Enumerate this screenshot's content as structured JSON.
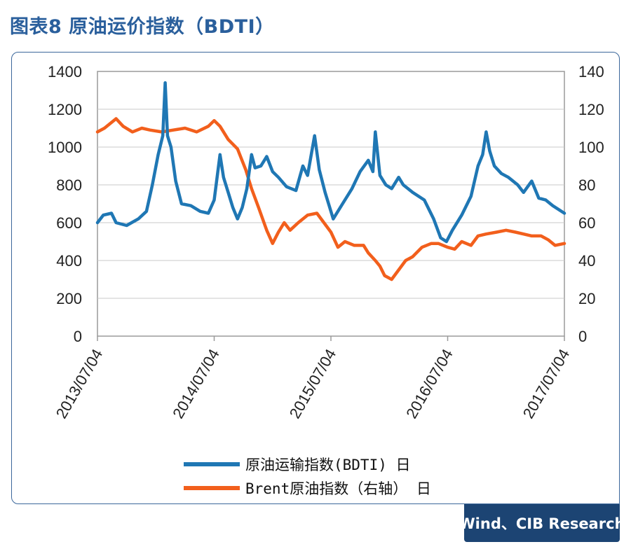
{
  "figure_title": "图表8 原油运价指数（BDTI）",
  "source": "Wind、CIB Research",
  "chart_data": {
    "type": "line",
    "y_left": {
      "min": 0,
      "max": 1400,
      "ticks": [
        "0",
        "200",
        "400",
        "600",
        "800",
        "1000",
        "1200",
        "1400"
      ]
    },
    "y_right": {
      "min": 0,
      "max": 140,
      "ticks": [
        "0",
        "20",
        "40",
        "60",
        "80",
        "100",
        "120",
        "140"
      ]
    },
    "x_ticks": [
      "2013/07/04",
      "2014/07/04",
      "2015/07/04",
      "2016/07/04",
      "2017/07/04"
    ],
    "x_range": [
      2013.5,
      2017.5
    ],
    "legend_placement": "bottom",
    "series": [
      {
        "name": "原油运输指数(BDTI) 日",
        "axis": "left",
        "color": "#1f77b4",
        "points": [
          [
            2013.5,
            600
          ],
          [
            2013.55,
            640
          ],
          [
            2013.62,
            650
          ],
          [
            2013.66,
            600
          ],
          [
            2013.75,
            585
          ],
          [
            2013.85,
            620
          ],
          [
            2013.92,
            660
          ],
          [
            2013.97,
            800
          ],
          [
            2014.02,
            960
          ],
          [
            2014.06,
            1060
          ],
          [
            2014.08,
            1340
          ],
          [
            2014.1,
            1060
          ],
          [
            2014.13,
            1000
          ],
          [
            2014.17,
            820
          ],
          [
            2014.22,
            700
          ],
          [
            2014.3,
            690
          ],
          [
            2014.38,
            660
          ],
          [
            2014.45,
            650
          ],
          [
            2014.5,
            720
          ],
          [
            2014.55,
            960
          ],
          [
            2014.58,
            840
          ],
          [
            2014.62,
            760
          ],
          [
            2014.66,
            680
          ],
          [
            2014.7,
            620
          ],
          [
            2014.74,
            680
          ],
          [
            2014.78,
            780
          ],
          [
            2014.82,
            960
          ],
          [
            2014.85,
            890
          ],
          [
            2014.9,
            900
          ],
          [
            2014.95,
            950
          ],
          [
            2015.0,
            870
          ],
          [
            2015.05,
            840
          ],
          [
            2015.12,
            790
          ],
          [
            2015.2,
            770
          ],
          [
            2015.26,
            900
          ],
          [
            2015.3,
            850
          ],
          [
            2015.36,
            1060
          ],
          [
            2015.4,
            880
          ],
          [
            2015.45,
            760
          ],
          [
            2015.52,
            620
          ],
          [
            2015.6,
            700
          ],
          [
            2015.68,
            780
          ],
          [
            2015.75,
            870
          ],
          [
            2015.82,
            930
          ],
          [
            2015.86,
            870
          ],
          [
            2015.88,
            1080
          ],
          [
            2015.92,
            850
          ],
          [
            2015.97,
            800
          ],
          [
            2016.02,
            780
          ],
          [
            2016.08,
            840
          ],
          [
            2016.12,
            800
          ],
          [
            2016.2,
            760
          ],
          [
            2016.3,
            720
          ],
          [
            2016.38,
            620
          ],
          [
            2016.44,
            520
          ],
          [
            2016.49,
            500
          ],
          [
            2016.54,
            560
          ],
          [
            2016.62,
            640
          ],
          [
            2016.7,
            740
          ],
          [
            2016.76,
            900
          ],
          [
            2016.8,
            960
          ],
          [
            2016.83,
            1080
          ],
          [
            2016.86,
            980
          ],
          [
            2016.9,
            900
          ],
          [
            2016.96,
            860
          ],
          [
            2017.02,
            840
          ],
          [
            2017.1,
            800
          ],
          [
            2017.15,
            760
          ],
          [
            2017.22,
            820
          ],
          [
            2017.28,
            730
          ],
          [
            2017.34,
            720
          ],
          [
            2017.4,
            690
          ],
          [
            2017.5,
            650
          ]
        ]
      },
      {
        "name": "Brent原油指数（右轴） 日",
        "axis": "right",
        "color": "#f25f1c",
        "points": [
          [
            2013.5,
            108
          ],
          [
            2013.56,
            110
          ],
          [
            2013.62,
            113
          ],
          [
            2013.66,
            115
          ],
          [
            2013.72,
            111
          ],
          [
            2013.8,
            108
          ],
          [
            2013.88,
            110
          ],
          [
            2013.95,
            109
          ],
          [
            2014.05,
            108
          ],
          [
            2014.15,
            109
          ],
          [
            2014.25,
            110
          ],
          [
            2014.35,
            108
          ],
          [
            2014.45,
            111
          ],
          [
            2014.5,
            114
          ],
          [
            2014.55,
            111
          ],
          [
            2014.62,
            104
          ],
          [
            2014.7,
            99
          ],
          [
            2014.77,
            88
          ],
          [
            2014.82,
            78
          ],
          [
            2014.88,
            68
          ],
          [
            2014.95,
            56
          ],
          [
            2015.0,
            49
          ],
          [
            2015.05,
            55
          ],
          [
            2015.1,
            60
          ],
          [
            2015.15,
            56
          ],
          [
            2015.22,
            60
          ],
          [
            2015.3,
            64
          ],
          [
            2015.38,
            65
          ],
          [
            2015.44,
            60
          ],
          [
            2015.5,
            55
          ],
          [
            2015.56,
            47
          ],
          [
            2015.62,
            50
          ],
          [
            2015.7,
            48
          ],
          [
            2015.78,
            48
          ],
          [
            2015.82,
            44
          ],
          [
            2015.88,
            40
          ],
          [
            2015.92,
            37
          ],
          [
            2015.96,
            32
          ],
          [
            2016.02,
            30
          ],
          [
            2016.08,
            35
          ],
          [
            2016.14,
            40
          ],
          [
            2016.2,
            42
          ],
          [
            2016.28,
            47
          ],
          [
            2016.36,
            49
          ],
          [
            2016.42,
            49
          ],
          [
            2016.5,
            47
          ],
          [
            2016.56,
            46
          ],
          [
            2016.62,
            50
          ],
          [
            2016.7,
            48
          ],
          [
            2016.76,
            53
          ],
          [
            2016.83,
            54
          ],
          [
            2016.92,
            55
          ],
          [
            2017.0,
            56
          ],
          [
            2017.08,
            55
          ],
          [
            2017.15,
            54
          ],
          [
            2017.22,
            53
          ],
          [
            2017.3,
            53
          ],
          [
            2017.36,
            51
          ],
          [
            2017.42,
            48
          ],
          [
            2017.5,
            49
          ]
        ]
      }
    ]
  }
}
